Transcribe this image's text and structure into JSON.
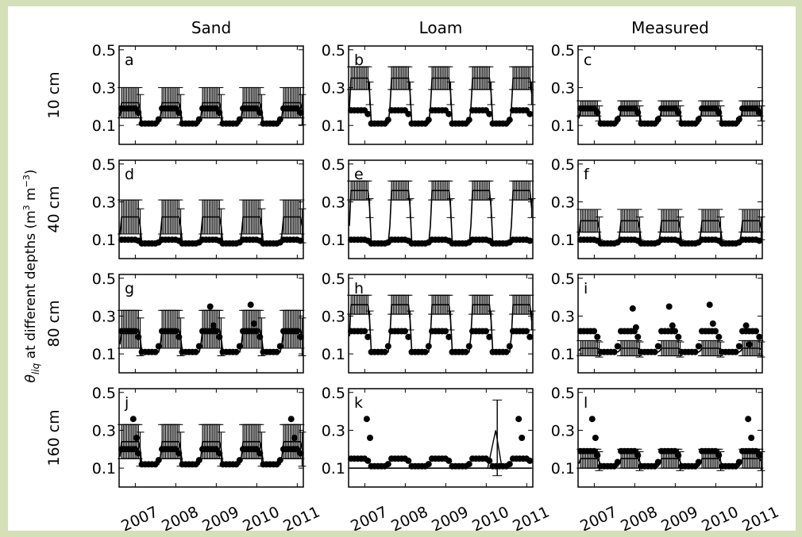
{
  "chart_data": {
    "type": "line",
    "title": "",
    "ylabel_main": "θ",
    "ylabel_sub": "liq",
    "ylabel_tail": " at different depths (m",
    "ylabel_exp1": "3",
    "ylabel_mid": " m",
    "ylabel_exp2": "−3",
    "ylabel_end": ")",
    "columns": [
      "Sand",
      "Loam",
      "Measured"
    ],
    "rows": [
      "10 cm",
      "40 cm",
      "80 cm",
      "160 cm"
    ],
    "ylim": [
      0.0,
      0.52
    ],
    "yticks": [
      "0.1",
      "0.3",
      "0.5"
    ],
    "ytick_values": [
      0.1,
      0.3,
      0.5
    ],
    "xlim": [
      2006.6,
      2011.15
    ],
    "xticks": [
      "2007",
      "2008",
      "2009",
      "2010",
      "2011"
    ],
    "xtick_values": [
      2007,
      2008,
      2009,
      2010,
      2011
    ],
    "panel_letters": [
      "a",
      "b",
      "c",
      "d",
      "e",
      "f",
      "g",
      "h",
      "i",
      "j",
      "k",
      "l"
    ],
    "panels": [
      {
        "letter": "a",
        "base": 0.11,
        "peak": 0.22,
        "err": 0.08,
        "obs_base": 0.11,
        "obs_peak": 0.19
      },
      {
        "letter": "b",
        "base": 0.11,
        "peak": 0.35,
        "err": 0.06,
        "obs_base": 0.11,
        "obs_peak": 0.18
      },
      {
        "letter": "c",
        "base": 0.11,
        "peak": 0.19,
        "err": 0.04,
        "obs_base": 0.11,
        "obs_peak": 0.19
      },
      {
        "letter": "d",
        "base": 0.08,
        "peak": 0.22,
        "err": 0.09,
        "obs_base": 0.08,
        "obs_peak": 0.1
      },
      {
        "letter": "e",
        "base": 0.08,
        "peak": 0.36,
        "err": 0.05,
        "obs_base": 0.08,
        "obs_peak": 0.1
      },
      {
        "letter": "f",
        "base": 0.08,
        "peak": 0.2,
        "err": 0.06,
        "obs_base": 0.08,
        "obs_peak": 0.1
      },
      {
        "letter": "g",
        "base": 0.11,
        "peak": 0.23,
        "err": 0.1,
        "obs_base": 0.11,
        "obs_peak": 0.22,
        "spikes": [
          2008.85,
          0.35,
          2009.85,
          0.36
        ]
      },
      {
        "letter": "h",
        "base": 0.11,
        "peak": 0.36,
        "err": 0.05,
        "obs_base": 0.11,
        "obs_peak": 0.22
      },
      {
        "letter": "i",
        "base": 0.11,
        "peak": 0.13,
        "err": 0.04,
        "obs_base": 0.11,
        "obs_peak": 0.22,
        "spikes": [
          2007.95,
          0.34,
          2008.85,
          0.35,
          2009.85,
          0.36,
          2010.75,
          0.25
        ]
      },
      {
        "letter": "j",
        "base": 0.12,
        "peak": 0.24,
        "err": 0.09,
        "obs_base": 0.12,
        "obs_peak": 0.2,
        "spikes": [
          2006.95,
          0.36,
          2010.85,
          0.36
        ]
      },
      {
        "letter": "k",
        "base": 0.1,
        "peak": 0.1,
        "err": 0.0,
        "obs_base": 0.11,
        "obs_peak": 0.15,
        "spikes": [
          2007.05,
          0.36,
          2010.8,
          0.36
        ],
        "burst": [
          2010.35,
          0.3
        ]
      },
      {
        "letter": "l",
        "base": 0.11,
        "peak": 0.15,
        "err": 0.05,
        "obs_base": 0.11,
        "obs_peak": 0.19,
        "spikes": [
          2006.95,
          0.36,
          2010.8,
          0.36
        ]
      }
    ]
  }
}
